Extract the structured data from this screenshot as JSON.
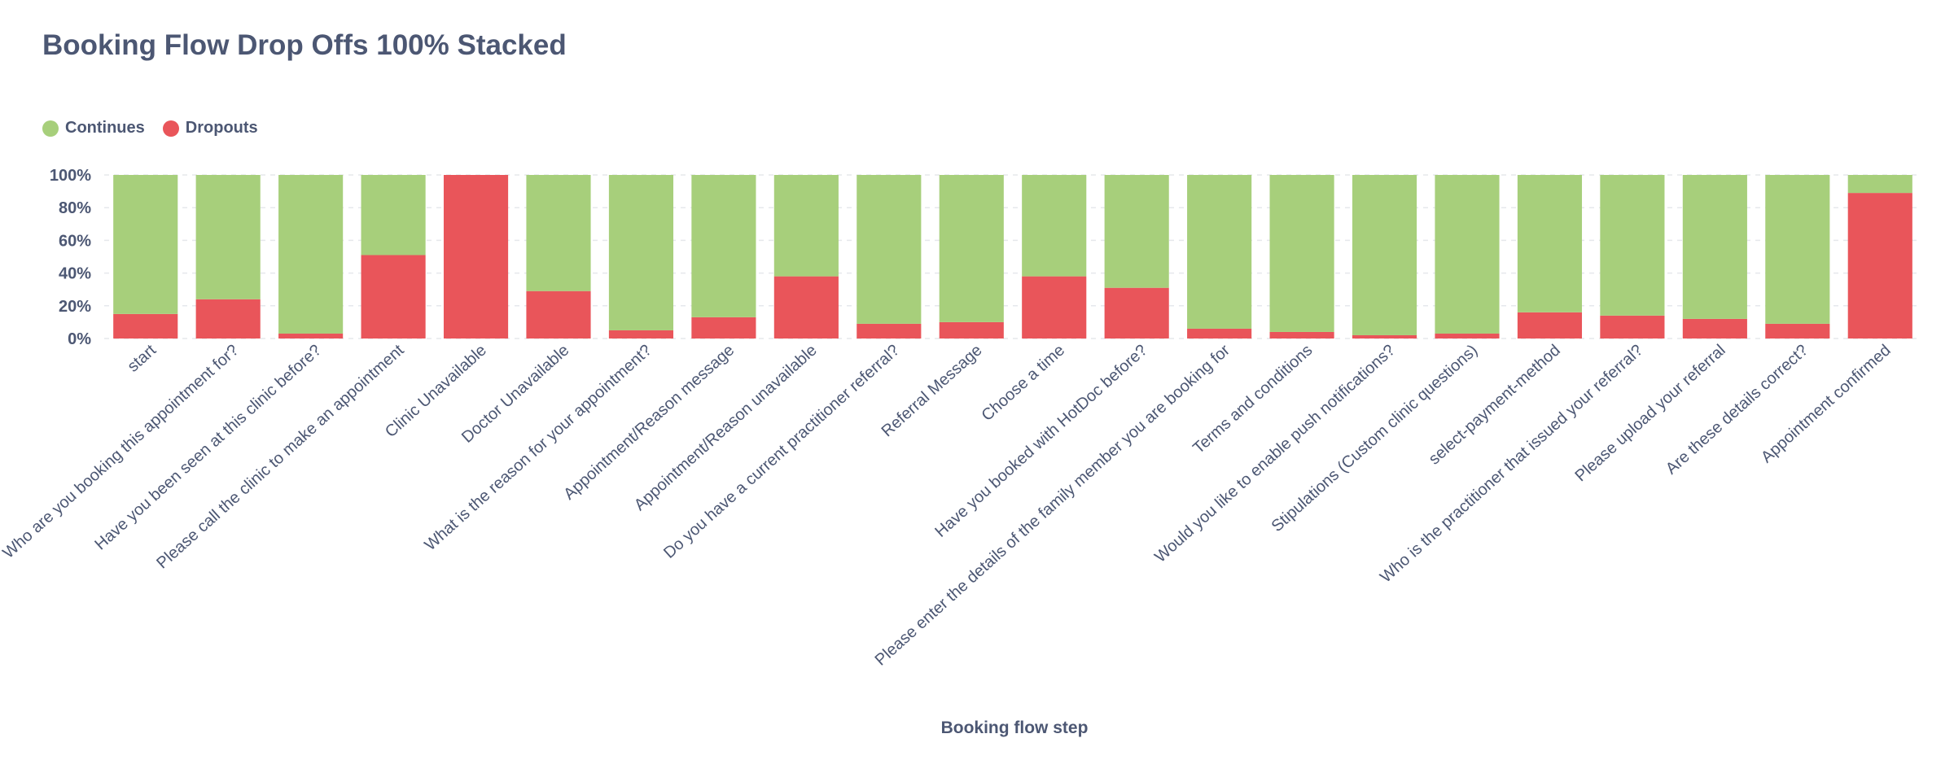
{
  "chart_data": {
    "type": "bar",
    "stacked": "100%",
    "title": "Booking Flow Drop Offs 100% Stacked",
    "xlabel": "Booking flow step",
    "ylabel": "",
    "ylim": [
      0,
      100
    ],
    "yticks": [
      "0%",
      "20%",
      "40%",
      "60%",
      "80%",
      "100%"
    ],
    "grid": true,
    "legend_position": "top-left",
    "categories": [
      "start",
      "Who are you booking this appointment for?",
      "Have you been seen at this clinic before?",
      "Please call the clinic to make an appointment",
      "Clinic Unavailable",
      "Doctor Unavailable",
      "What is the reason for your appointment?",
      "Appointment/Reason message",
      "Appointment/Reason unavailable",
      "Do you have a current practitioner referral?",
      "Referral Message",
      "Choose a time",
      "Have you booked with HotDoc before?",
      "Please enter the details of the family member you are booking for",
      "Terms and conditions",
      "Would you like to enable push notifications?",
      "Stipulations (Custom clinic questions)",
      "select-payment-method",
      "Who is the practitioner that issued your referral?",
      "Please upload your referral",
      "Are these details correct?",
      "Appointment confirmed"
    ],
    "series": [
      {
        "name": "Dropouts",
        "color": "#e9555a",
        "values": [
          15,
          24,
          3,
          51,
          100,
          29,
          5,
          13,
          38,
          9,
          10,
          38,
          31,
          6,
          4,
          2,
          3,
          16,
          14,
          12,
          9,
          89
        ]
      },
      {
        "name": "Continues",
        "color": "#a7cf7b",
        "values": [
          85,
          76,
          97,
          49,
          0,
          71,
          95,
          87,
          62,
          91,
          90,
          62,
          69,
          94,
          96,
          98,
          97,
          84,
          86,
          88,
          91,
          11
        ]
      }
    ]
  }
}
